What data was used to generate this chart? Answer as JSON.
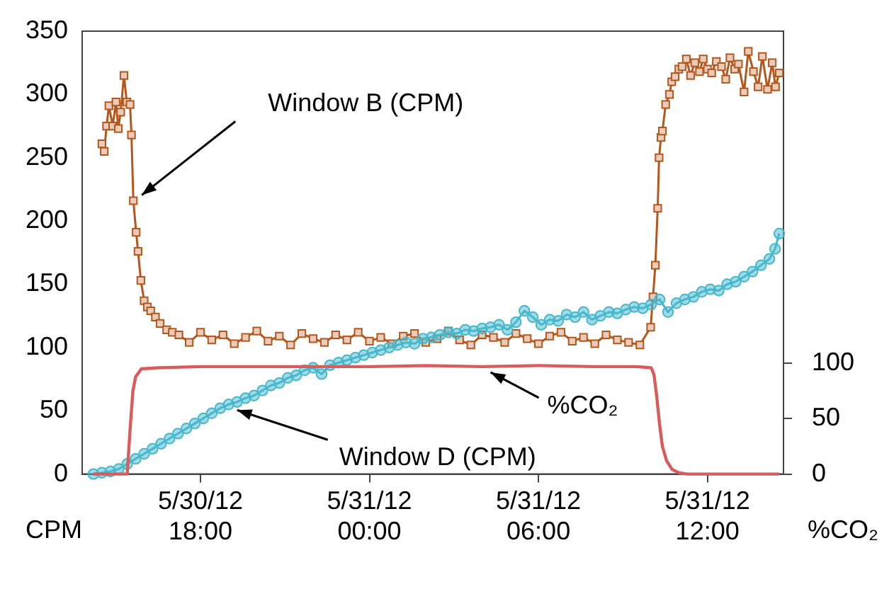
{
  "chart_data": {
    "type": "line",
    "ylabel": "CPM",
    "y2label": "%CO₂",
    "xlim": [
      "--05-30T13:48",
      "--05-31T14:42"
    ],
    "xticks": [
      {
        "value": "--05-30T18:00",
        "label": "5/30/12 18:00"
      },
      {
        "value": "--05-31T00:00",
        "label": "5/31/12 00:00"
      },
      {
        "value": "--05-31T06:00",
        "label": "5/31/12 06:00"
      },
      {
        "value": "--05-31T12:00",
        "label": "5/31/12 12:00"
      }
    ],
    "ylim": [
      0,
      350
    ],
    "yticks": [
      0,
      50,
      100,
      150,
      200,
      250,
      300,
      350
    ],
    "y2lim": [
      0,
      400
    ],
    "y2ticks": [
      0,
      50,
      100
    ],
    "grid": false,
    "legend": false,
    "series": [
      {
        "name": "Window B (CPM)",
        "color": "#b5561b",
        "marker": "square",
        "x": [
          "--05-30T14:30",
          "--05-30T14:35",
          "--05-30T14:40",
          "--05-30T14:45",
          "--05-30T14:53",
          "--05-30T15:00",
          "--05-30T15:05",
          "--05-30T15:10",
          "--05-30T15:17",
          "--05-30T15:23",
          "--05-30T15:30",
          "--05-30T15:33",
          "--05-30T15:37",
          "--05-30T15:43",
          "--05-30T15:47",
          "--05-30T15:53",
          "--05-30T16:00",
          "--05-30T16:07",
          "--05-30T16:14",
          "--05-30T16:24",
          "--05-30T16:34",
          "--05-30T16:48",
          "--05-30T17:00",
          "--05-30T17:14",
          "--05-30T17:36",
          "--05-30T18:00",
          "--05-30T18:24",
          "--05-30T18:48",
          "--05-30T19:12",
          "--05-30T19:36",
          "--05-30T20:00",
          "--05-30T20:24",
          "--05-30T20:48",
          "--05-30T21:12",
          "--05-30T21:36",
          "--05-30T22:00",
          "--05-30T22:24",
          "--05-30T22:48",
          "--05-30T23:12",
          "--05-30T23:36",
          "--05-31T00:00",
          "--05-31T00:24",
          "--05-31T00:48",
          "--05-31T01:12",
          "--05-31T01:36",
          "--05-31T02:00",
          "--05-31T02:24",
          "--05-31T02:48",
          "--05-31T03:12",
          "--05-31T03:36",
          "--05-31T04:00",
          "--05-31T04:24",
          "--05-31T04:48",
          "--05-31T05:12",
          "--05-31T05:36",
          "--05-31T06:00",
          "--05-31T06:24",
          "--05-31T06:48",
          "--05-31T07:12",
          "--05-31T07:36",
          "--05-31T08:00",
          "--05-31T08:24",
          "--05-31T08:48",
          "--05-31T09:12",
          "--05-31T09:36",
          "--05-31T09:59",
          "--05-31T10:04",
          "--05-31T10:09",
          "--05-31T10:14",
          "--05-31T10:17",
          "--05-31T10:21",
          "--05-31T10:24",
          "--05-31T10:31",
          "--05-31T10:39",
          "--05-31T10:44",
          "--05-31T10:51",
          "--05-31T10:59",
          "--05-31T11:06",
          "--05-31T11:15",
          "--05-31T11:24",
          "--05-31T11:33",
          "--05-31T11:43",
          "--05-31T11:51",
          "--05-31T12:00",
          "--05-31T12:09",
          "--05-31T12:19",
          "--05-31T12:30",
          "--05-31T12:39",
          "--05-31T12:48",
          "--05-31T12:58",
          "--05-31T13:06",
          "--05-31T13:18",
          "--05-31T13:27",
          "--05-31T13:38",
          "--05-31T13:48",
          "--05-31T13:57",
          "--05-31T14:08",
          "--05-31T14:18",
          "--05-31T14:25",
          "--05-31T14:33"
        ],
        "values": [
          261,
          255,
          275,
          291,
          275,
          294,
          273,
          286,
          315,
          294,
          292,
          268,
          216,
          191,
          176,
          153,
          137,
          132,
          129,
          124,
          119,
          114,
          112,
          110,
          104,
          112,
          106,
          110,
          103,
          108,
          113,
          105,
          109,
          102,
          111,
          107,
          104,
          110,
          106,
          112,
          105,
          108,
          103,
          109,
          111,
          104,
          107,
          113,
          106,
          102,
          110,
          108,
          104,
          111,
          107,
          103,
          109,
          112,
          105,
          108,
          103,
          110,
          106,
          104,
          102,
          116,
          140,
          165,
          210,
          250,
          266,
          271,
          292,
          300,
          310,
          314,
          320,
          322,
          328,
          315,
          325,
          318,
          328,
          320,
          317,
          326,
          322,
          312,
          329,
          320,
          324,
          302,
          334,
          318,
          306,
          330,
          304,
          325,
          306,
          317
        ]
      },
      {
        "name": "Window D (CPM)",
        "color": "#45b8cc",
        "marker": "circle",
        "x": [
          "--05-30T14:12",
          "--05-30T14:30",
          "--05-30T14:48",
          "--05-30T15:06",
          "--05-30T15:24",
          "--05-30T15:42",
          "--05-30T16:00",
          "--05-30T16:18",
          "--05-30T16:36",
          "--05-30T16:54",
          "--05-30T17:12",
          "--05-30T17:30",
          "--05-30T17:48",
          "--05-30T18:06",
          "--05-30T18:24",
          "--05-30T18:42",
          "--05-30T19:00",
          "--05-30T19:18",
          "--05-30T19:36",
          "--05-30T19:54",
          "--05-30T20:12",
          "--05-30T20:30",
          "--05-30T20:48",
          "--05-30T21:06",
          "--05-30T21:24",
          "--05-30T21:42",
          "--05-30T22:00",
          "--05-30T22:18",
          "--05-30T22:36",
          "--05-30T22:54",
          "--05-30T23:12",
          "--05-30T23:30",
          "--05-30T23:48",
          "--05-31T00:06",
          "--05-31T00:24",
          "--05-31T00:42",
          "--05-31T01:00",
          "--05-31T01:18",
          "--05-31T01:36",
          "--05-31T01:54",
          "--05-31T02:12",
          "--05-31T02:30",
          "--05-31T02:48",
          "--05-31T03:06",
          "--05-31T03:24",
          "--05-31T03:42",
          "--05-31T04:00",
          "--05-31T04:18",
          "--05-31T04:36",
          "--05-31T04:54",
          "--05-31T05:12",
          "--05-31T05:30",
          "--05-31T05:48",
          "--05-31T06:06",
          "--05-31T06:24",
          "--05-31T06:42",
          "--05-31T07:00",
          "--05-31T07:18",
          "--05-31T07:36",
          "--05-31T07:54",
          "--05-31T08:12",
          "--05-31T08:30",
          "--05-31T08:48",
          "--05-31T09:06",
          "--05-31T09:24",
          "--05-31T09:42",
          "--05-31T10:00",
          "--05-31T10:18",
          "--05-31T10:36",
          "--05-31T10:54",
          "--05-31T11:12",
          "--05-31T11:30",
          "--05-31T11:48",
          "--05-31T12:06",
          "--05-31T12:24",
          "--05-31T12:42",
          "--05-31T13:00",
          "--05-31T13:18",
          "--05-31T13:36",
          "--05-31T13:54",
          "--05-31T14:12",
          "--05-31T14:24",
          "--05-31T14:33"
        ],
        "values": [
          0,
          1,
          2,
          4,
          8,
          12,
          16,
          20,
          24,
          28,
          32,
          36,
          40,
          44,
          48,
          52,
          55,
          57,
          60,
          62,
          66,
          70,
          72,
          76,
          78,
          82,
          84,
          79,
          86,
          88,
          90,
          92,
          94,
          96,
          98,
          100,
          102,
          104,
          103,
          107,
          108,
          110,
          112,
          111,
          114,
          113,
          115,
          116,
          118,
          114,
          120,
          129,
          124,
          118,
          122,
          121,
          126,
          124,
          128,
          122,
          125,
          128,
          127,
          130,
          132,
          131,
          134,
          138,
          128,
          135,
          138,
          140,
          144,
          146,
          145,
          150,
          152,
          156,
          160,
          165,
          170,
          178,
          190
        ]
      },
      {
        "name": "%CO₂",
        "color": "#d95b5b",
        "marker": "none",
        "axis": "y2",
        "x": [
          "--05-30T14:12",
          "--05-30T15:12",
          "--05-30T15:24",
          "--05-30T15:30",
          "--05-30T15:36",
          "--05-30T15:42",
          "--05-30T15:54",
          "--05-30T16:30",
          "--05-30T18:00",
          "--05-30T20:00",
          "--05-30T22:00",
          "--05-31T00:00",
          "--05-31T02:00",
          "--05-31T04:00",
          "--05-31T06:00",
          "--05-31T08:00",
          "--05-31T09:30",
          "--05-31T10:00",
          "--05-31T10:06",
          "--05-31T10:12",
          "--05-31T10:18",
          "--05-31T10:24",
          "--05-31T10:33",
          "--05-31T10:45",
          "--05-31T11:00",
          "--05-31T11:18",
          "--05-31T14:33"
        ],
        "values": [
          0,
          0,
          0,
          40,
          75,
          88,
          95,
          96,
          97,
          97,
          97,
          97,
          98,
          97,
          98,
          97,
          97,
          96,
          90,
          70,
          45,
          25,
          12,
          4,
          1,
          0,
          0
        ]
      }
    ]
  }
}
